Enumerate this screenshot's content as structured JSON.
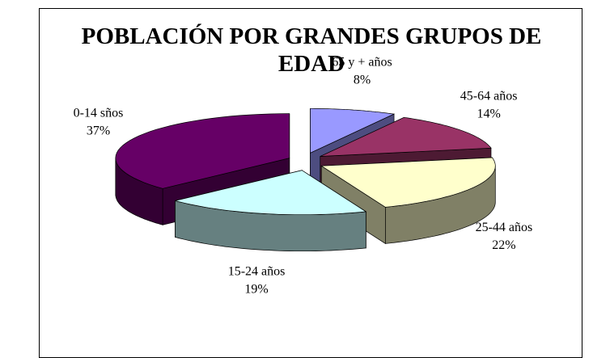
{
  "chart_data": {
    "type": "pie3d",
    "title": "POBLACIÓN POR GRANDES GRUPOS DE EDAD",
    "categories": [
      "65 y + años",
      "45-64 años",
      "25-44 años",
      "15-24 años",
      "0-14 sños"
    ],
    "values": [
      8,
      14,
      22,
      19,
      37
    ],
    "value_labels": [
      "8%",
      "14%",
      "22%",
      "19%",
      "37%"
    ],
    "colors": [
      "#9999ff",
      "#993366",
      "#ffffcc",
      "#ccffff",
      "#660066"
    ]
  }
}
